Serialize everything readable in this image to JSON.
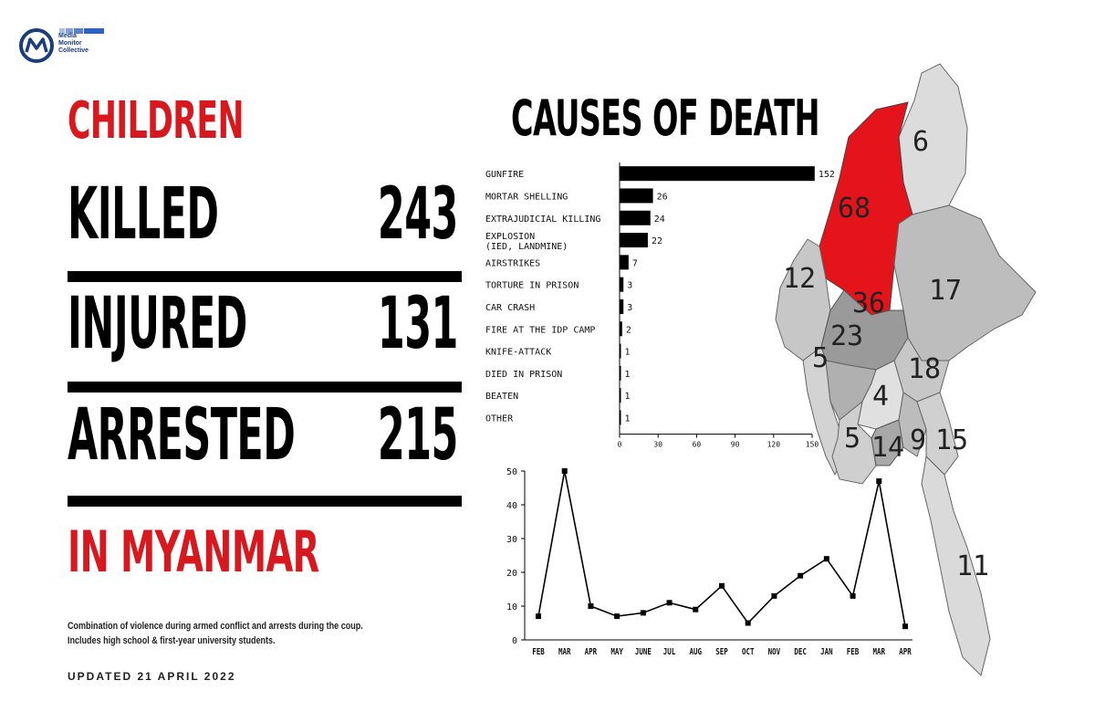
{
  "logo": {
    "text_lines": [
      "Media",
      "Monitor",
      "Collective"
    ]
  },
  "headline": {
    "top": "CHILDREN",
    "bottom": "IN MYANMAR"
  },
  "stats": {
    "killed": {
      "label": "KILLED",
      "value": "243"
    },
    "injured": {
      "label": "INJURED",
      "value": "131"
    },
    "arrested": {
      "label": "ARRESTED",
      "value": "215"
    }
  },
  "footnote": {
    "line1": "Combination of violence during armed conflict and arrests during the coup.",
    "line2": "Includes high school & first-year university students."
  },
  "updated": "UPDATED 21 APRIL 2022",
  "colors": {
    "accent_red": "#d7191f",
    "bar_black": "#000000",
    "map_light": "#dcdcdc",
    "map_mid": "#bdbdbd",
    "map_dark": "#9a9a9a"
  },
  "chart_data": [
    {
      "type": "bar",
      "orientation": "horizontal",
      "title": "CAUSES OF DEATH",
      "categories": [
        "GUNFIRE",
        "MORTAR SHELLING",
        "EXTRAJUDICIAL KILLING",
        "EXPLOSION\n(IED, LANDMINE)",
        "AIRSTRIKES",
        "TORTURE IN PRISON",
        "CAR CRASH",
        "FIRE AT THE IDP CAMP",
        "KNIFE-ATTACK",
        "DIED IN PRISON",
        "BEATEN",
        "OTHER"
      ],
      "values": [
        152,
        26,
        24,
        22,
        7,
        3,
        3,
        2,
        1,
        1,
        1,
        1
      ],
      "xlim": [
        0,
        150
      ],
      "xticks": [
        "0",
        "30",
        "60",
        "90",
        "120",
        "150"
      ],
      "grid": false
    },
    {
      "type": "line",
      "title": "",
      "x": [
        "FEB",
        "MAR",
        "APR",
        "MAY",
        "JUNE",
        "JUL",
        "AUG",
        "SEP",
        "OCT",
        "NOV",
        "DEC",
        "JAN",
        "FEB",
        "MAR",
        "APR"
      ],
      "values": [
        7,
        50,
        10,
        7,
        8,
        11,
        9,
        16,
        5,
        13,
        19,
        24,
        13,
        47,
        4
      ],
      "ylim": [
        0,
        50
      ],
      "yticks": [
        "0",
        "10",
        "20",
        "30",
        "40",
        "50"
      ],
      "grid": false
    }
  ],
  "map_labels": [
    "6",
    "68",
    "12",
    "36",
    "17",
    "23",
    "5",
    "18",
    "4",
    "5",
    "14",
    "9",
    "15",
    "11"
  ]
}
